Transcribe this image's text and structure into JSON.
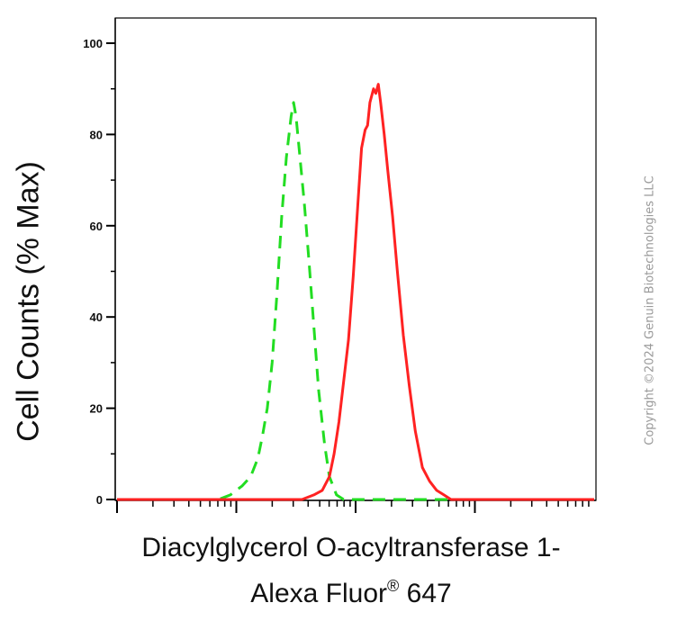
{
  "chart_data": {
    "type": "line",
    "ylabel": "Cell Counts (% Max)",
    "xlabel_line1": "Diacylglycerol O-acyltransferase 1-",
    "xlabel_line2_main": "Alexa Fluor",
    "xlabel_line2_reg": "®",
    "xlabel_line2_suffix": " 647",
    "ylim": [
      0,
      100
    ],
    "yticks": [
      "0",
      "20",
      "40",
      "60",
      "80",
      "100"
    ],
    "x_scale": "log",
    "x_decades": 4,
    "series": [
      {
        "style": "dashed",
        "color": "#22dd22",
        "points": [
          [
            0.0,
            0
          ],
          [
            0.6,
            0
          ],
          [
            0.85,
            0
          ],
          [
            0.95,
            1
          ],
          [
            1.05,
            3
          ],
          [
            1.12,
            5
          ],
          [
            1.18,
            9
          ],
          [
            1.22,
            14
          ],
          [
            1.26,
            20
          ],
          [
            1.3,
            30
          ],
          [
            1.34,
            45
          ],
          [
            1.38,
            62
          ],
          [
            1.42,
            75
          ],
          [
            1.46,
            84
          ],
          [
            1.48,
            87
          ],
          [
            1.5,
            84
          ],
          [
            1.53,
            76
          ],
          [
            1.57,
            65
          ],
          [
            1.61,
            52
          ],
          [
            1.65,
            38
          ],
          [
            1.69,
            24
          ],
          [
            1.74,
            12
          ],
          [
            1.78,
            5
          ],
          [
            1.84,
            1
          ],
          [
            1.9,
            0
          ],
          [
            2.5,
            0
          ],
          [
            4.0,
            0
          ]
        ]
      },
      {
        "style": "solid",
        "color": "#ff2222",
        "points": [
          [
            0.0,
            0
          ],
          [
            1.4,
            0
          ],
          [
            1.55,
            0
          ],
          [
            1.65,
            1
          ],
          [
            1.72,
            2
          ],
          [
            1.78,
            5
          ],
          [
            1.82,
            10
          ],
          [
            1.86,
            17
          ],
          [
            1.9,
            26
          ],
          [
            1.94,
            35
          ],
          [
            1.98,
            49
          ],
          [
            2.02,
            65
          ],
          [
            2.05,
            77
          ],
          [
            2.08,
            81
          ],
          [
            2.1,
            82
          ],
          [
            2.12,
            87
          ],
          [
            2.15,
            90
          ],
          [
            2.17,
            89
          ],
          [
            2.19,
            91
          ],
          [
            2.21,
            87
          ],
          [
            2.24,
            80
          ],
          [
            2.27,
            72
          ],
          [
            2.31,
            62
          ],
          [
            2.35,
            50
          ],
          [
            2.4,
            36
          ],
          [
            2.45,
            25
          ],
          [
            2.5,
            15
          ],
          [
            2.56,
            7
          ],
          [
            2.62,
            4
          ],
          [
            2.68,
            2
          ],
          [
            2.74,
            1
          ],
          [
            2.8,
            0
          ],
          [
            4.0,
            0
          ]
        ]
      }
    ],
    "grid": false
  },
  "copyright": "Copyright ©2024 Genuin Biotechnologies LLC"
}
